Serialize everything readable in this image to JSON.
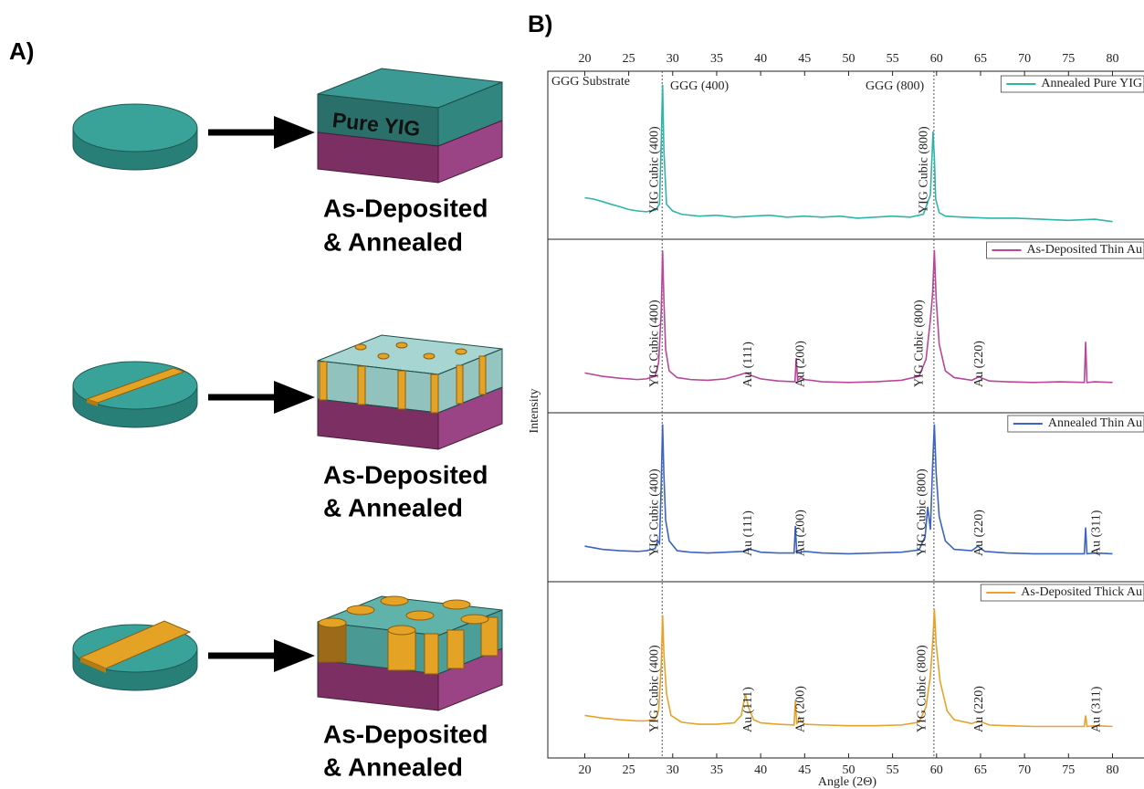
{
  "panel_a": {
    "label": "A)",
    "cube_label": "Pure YIG",
    "captions": [
      [
        "As-Deposited",
        "& Annealed"
      ],
      [
        "As-Deposited",
        "& Annealed"
      ],
      [
        "As-Deposited",
        "& Annealed"
      ]
    ]
  },
  "chart_data": {
    "type": "line",
    "label": "B)",
    "xlabel": "Angle (2Θ)",
    "ylabel": "Intensity",
    "xlim": [
      15.8,
      84
    ],
    "xticks": [
      20,
      25,
      30,
      35,
      40,
      45,
      50,
      55,
      60,
      65,
      70,
      75,
      80
    ],
    "ylim": [
      1,
      1000
    ],
    "log_y": true,
    "reference_lines": [
      28.8,
      59.7
    ],
    "substrate_labels": [
      "GGG Substrate",
      "GGG (400)",
      "GGG (800)"
    ],
    "panels": [
      {
        "series": [
          {
            "name": "Annealed Pure YIG",
            "color": "#2fb5a8",
            "x": [
              20,
              21,
              22,
              23,
              24,
              25,
              26,
              27,
              28,
              28.5,
              28.7,
              28.85,
              29.0,
              29.3,
              30,
              31,
              33,
              35,
              37,
              39,
              41,
              43,
              45,
              47,
              49,
              51,
              53,
              55,
              57,
              58.5,
              59.3,
              59.6,
              59.75,
              59.9,
              60.3,
              61,
              63,
              66,
              69,
              72,
              75,
              78,
              80
            ],
            "values": [
              5.3,
              5.0,
              4.5,
              4.0,
              3.6,
              3.2,
              3.0,
              2.9,
              3.1,
              4,
              60,
              680,
              40,
              4,
              3.0,
              2.6,
              2.4,
              2.5,
              2.3,
              2.4,
              2.5,
              2.3,
              2.4,
              2.3,
              2.4,
              2.2,
              2.3,
              2.4,
              2.3,
              2.6,
              6,
              91,
              30,
              5,
              2.8,
              2.4,
              2.3,
              2.2,
              2.2,
              2.1,
              2.0,
              2.1,
              1.9
            ]
          }
        ],
        "annotations": [
          {
            "text": "YIG Cubic (400)",
            "x": 28.0
          },
          {
            "text": "YIG Cubic (800)",
            "x": 58.6
          }
        ]
      },
      {
        "series": [
          {
            "name": "As-Deposited Thin Au",
            "color": "#b8479a",
            "x": [
              20,
              22,
              24,
              26,
              27,
              28,
              28.4,
              28.7,
              28.85,
              29.0,
              29.2,
              29.6,
              30.5,
              32,
              34,
              36,
              37.5,
              38.3,
              39,
              40,
              42,
              43.9,
              44.05,
              44.2,
              44.6,
              45,
              47,
              50,
              53,
              56,
              58,
              58.8,
              59.3,
              59.55,
              59.75,
              59.95,
              60.3,
              61,
              62,
              64,
              64.8,
              66,
              68,
              71,
              74,
              76.8,
              76.95,
              77.1,
              78,
              80
            ],
            "values": [
              4.6,
              4.0,
              3.7,
              3.5,
              3.6,
              4,
              7,
              60,
              700,
              90,
              12,
              5,
              3.8,
              3.5,
              3.4,
              3.6,
              4.2,
              4.6,
              4.1,
              3.6,
              3.3,
              3.2,
              8.5,
              3.4,
              3.8,
              3.5,
              3.2,
              3.1,
              3.2,
              3.4,
              4,
              8,
              41,
              120,
              720,
              100,
              15,
              5,
              3.8,
              3.4,
              3.9,
              3.3,
              3.2,
              3.1,
              3.2,
              3.1,
              16.5,
              3.1,
              3.2,
              3.1
            ]
          }
        ],
        "annotations": [
          {
            "text": "YIG Cubic (400)",
            "x": 28.0
          },
          {
            "text": "Au (111)",
            "x": 38.6
          },
          {
            "text": "Au (200)",
            "x": 44.6
          },
          {
            "text": "YIG Cubic (800)",
            "x": 58.1
          },
          {
            "text": "Au (220)",
            "x": 64.9
          }
        ]
      },
      {
        "series": [
          {
            "name": "Annealed Thin Au",
            "color": "#3c64c0",
            "x": [
              20,
              22,
              24,
              26,
              27,
              28,
              28.3,
              28.5,
              28.7,
              28.85,
              29.0,
              29.2,
              29.6,
              30.5,
              32,
              34,
              36,
              38,
              38.6,
              40,
              42,
              43.8,
              43.95,
              44.1,
              45,
              47,
              50,
              53,
              56,
              58,
              58.7,
              59.0,
              59.3,
              59.55,
              59.75,
              59.95,
              60.3,
              61,
              62,
              64,
              64.7,
              65.5,
              68,
              71,
              74,
              76.8,
              76.95,
              77.1,
              78,
              80
            ],
            "values": [
              4,
              3.5,
              3.3,
              3.2,
              3.3,
              3.6,
              5,
              4.5,
              60,
              690,
              80,
              12,
              5,
              3.3,
              3.1,
              3.0,
              3.1,
              3.2,
              3.6,
              3.1,
              3.0,
              3.0,
              9.4,
              3.0,
              3.2,
              3.0,
              2.9,
              3.0,
              3.1,
              3.4,
              6,
              21,
              8,
              120,
              690,
              90,
              14,
              5,
              3.5,
              3.3,
              4,
              3.2,
              3.0,
              2.9,
              2.9,
              2.9,
              8.8,
              2.9,
              3.0,
              2.9
            ]
          }
        ],
        "annotations": [
          {
            "text": "YIG Cubic (400)",
            "x": 28.0
          },
          {
            "text": "Au (111)",
            "x": 38.6
          },
          {
            "text": "Au (200)",
            "x": 44.6
          },
          {
            "text": "YIG Cubic (800)",
            "x": 58.4
          },
          {
            "text": "Au (220)",
            "x": 64.9
          },
          {
            "text": "Au (311)",
            "x": 78.2
          }
        ]
      },
      {
        "series": [
          {
            "name": "As-Deposited Thick Au",
            "color": "#e8a22c",
            "x": [
              20,
              22,
              24,
              26,
              27,
              28,
              28.4,
              28.7,
              28.85,
              29.0,
              29.3,
              29.8,
              31,
              33,
              35,
              37,
              37.8,
              38.1,
              38.3,
              38.6,
              39.2,
              40,
              42,
              43.8,
              43.95,
              44.1,
              44.4,
              44.6,
              45,
              47,
              50,
              53,
              56,
              58,
              58.8,
              59.3,
              59.6,
              59.75,
              59.95,
              60.4,
              61.2,
              62,
              64,
              64.8,
              66,
              68,
              71,
              74,
              76.8,
              76.95,
              77.1,
              78,
              80
            ],
            "values": [
              5,
              4.5,
              4.2,
              4.0,
              4.0,
              4.3,
              6,
              40,
              290,
              60,
              12,
              5,
              3.8,
              3.5,
              3.5,
              3.7,
              5,
              9,
              11.5,
              7,
              4.2,
              3.7,
              3.5,
              3.4,
              9.3,
              3.5,
              4.6,
              4.0,
              3.5,
              3.4,
              3.3,
              3.3,
              3.4,
              3.8,
              7,
              25,
              120,
              370,
              90,
              20,
              6,
              4.2,
              3.6,
              4,
              3.4,
              3.3,
              3.2,
              3.2,
              3.2,
              5,
              3.2,
              3.3,
              3.2
            ]
          }
        ],
        "annotations": [
          {
            "text": "YIG Cubic (400)",
            "x": 28.0
          },
          {
            "text": "Au (111)",
            "x": 38.6
          },
          {
            "text": "Au (200)",
            "x": 44.6
          },
          {
            "text": "YIG Cubic (800)",
            "x": 58.4
          },
          {
            "text": "Au (220)",
            "x": 64.9
          },
          {
            "text": "Au (311)",
            "x": 78.2
          }
        ]
      }
    ]
  }
}
